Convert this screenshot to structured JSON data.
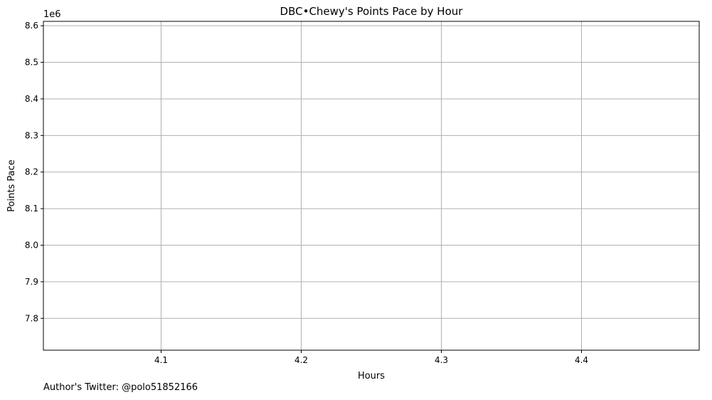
{
  "chart_data": {
    "type": "line",
    "title": "DBC•Chewy's Points Pace by Hour",
    "xlabel": "Hours",
    "ylabel": "Points Pace",
    "y_offset_label": "1e6",
    "xlim": [
      4.016,
      4.484
    ],
    "ylim": [
      7.713,
      8.612
    ],
    "x_ticks": [
      4.1,
      4.2,
      4.3,
      4.4
    ],
    "x_tick_labels": [
      "4.1",
      "4.2",
      "4.3",
      "4.4"
    ],
    "y_ticks": [
      7.8,
      7.9,
      8.0,
      8.1,
      8.2,
      8.3,
      8.4,
      8.5,
      8.6
    ],
    "y_tick_labels": [
      "7.8",
      "7.9",
      "8.0",
      "8.1",
      "8.2",
      "8.3",
      "8.4",
      "8.5",
      "8.6"
    ],
    "grid": true,
    "series": []
  },
  "footer": {
    "author_note": "Author's Twitter: @polo51852166"
  },
  "colors": {
    "grid": "#b0b0b0",
    "axis": "#000000",
    "background": "#ffffff"
  }
}
